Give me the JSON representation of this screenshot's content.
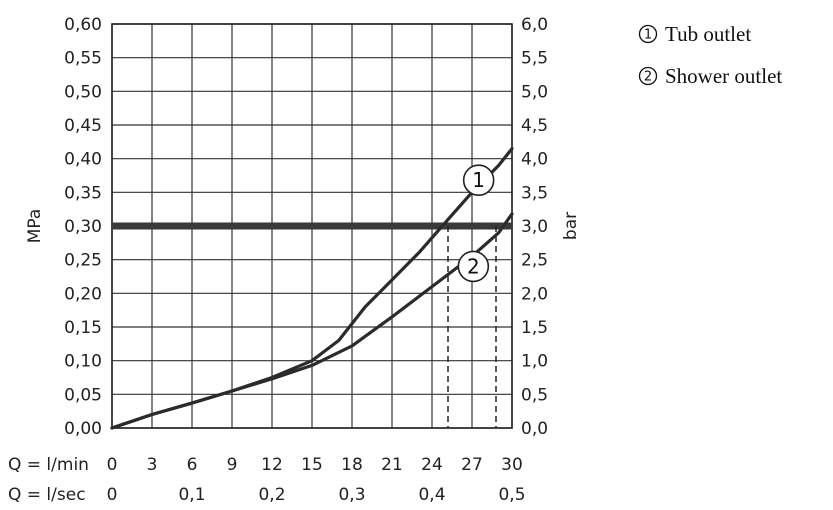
{
  "chart_data": {
    "type": "line",
    "x_axes": [
      {
        "label": "Q = l/min",
        "ticks": [
          "0",
          "3",
          "6",
          "9",
          "12",
          "15",
          "18",
          "21",
          "24",
          "27",
          "30"
        ],
        "values": [
          0,
          3,
          6,
          9,
          12,
          15,
          18,
          21,
          24,
          27,
          30
        ]
      },
      {
        "label": "Q = l/sec",
        "ticks": [
          "0",
          "0,1",
          "0,2",
          "0,3",
          "0,4",
          "0,5"
        ],
        "values": [
          0,
          6,
          12,
          18,
          24,
          30
        ]
      }
    ],
    "y_left": {
      "label": "MPa",
      "ticks": [
        "0,00",
        "0,05",
        "0,10",
        "0,15",
        "0,20",
        "0,25",
        "0,30",
        "0,35",
        "0,40",
        "0,45",
        "0,50",
        "0,55",
        "0,60"
      ],
      "ylim": [
        0,
        0.6
      ]
    },
    "y_right": {
      "label": "bar",
      "ticks": [
        "0,0",
        "0,5",
        "1,0",
        "1,5",
        "2,0",
        "2,5",
        "3,0",
        "3,5",
        "4,0",
        "4,5",
        "5,0",
        "5,5",
        "6,0"
      ],
      "ylim": [
        0,
        6
      ]
    },
    "xlim": [
      0,
      30
    ],
    "grid": true,
    "reference_line": {
      "y": 0.3
    },
    "series": [
      {
        "name": "Tub outlet",
        "marker": "1",
        "x": [
          0,
          3,
          6,
          9,
          12,
          15,
          17,
          19,
          21,
          23,
          25,
          27,
          29,
          30
        ],
        "y": [
          0,
          0.02,
          0.037,
          0.055,
          0.075,
          0.1,
          0.13,
          0.18,
          0.22,
          0.26,
          0.305,
          0.35,
          0.39,
          0.415
        ]
      },
      {
        "name": "Shower outlet",
        "marker": "2",
        "x": [
          0,
          3,
          6,
          9,
          12,
          15,
          18,
          21,
          24,
          27,
          29,
          30
        ],
        "y": [
          0,
          0.02,
          0.037,
          0.055,
          0.073,
          0.093,
          0.122,
          0.165,
          0.21,
          0.255,
          0.29,
          0.318
        ]
      }
    ],
    "drop_lines": [
      {
        "x": 25.2,
        "y": 0.3
      },
      {
        "x": 28.8,
        "y": 0.3
      }
    ],
    "legend": {
      "position": "top-right",
      "entries": [
        {
          "marker": "1",
          "label": "Tub outlet"
        },
        {
          "marker": "2",
          "label": "Shower outlet"
        }
      ]
    }
  }
}
